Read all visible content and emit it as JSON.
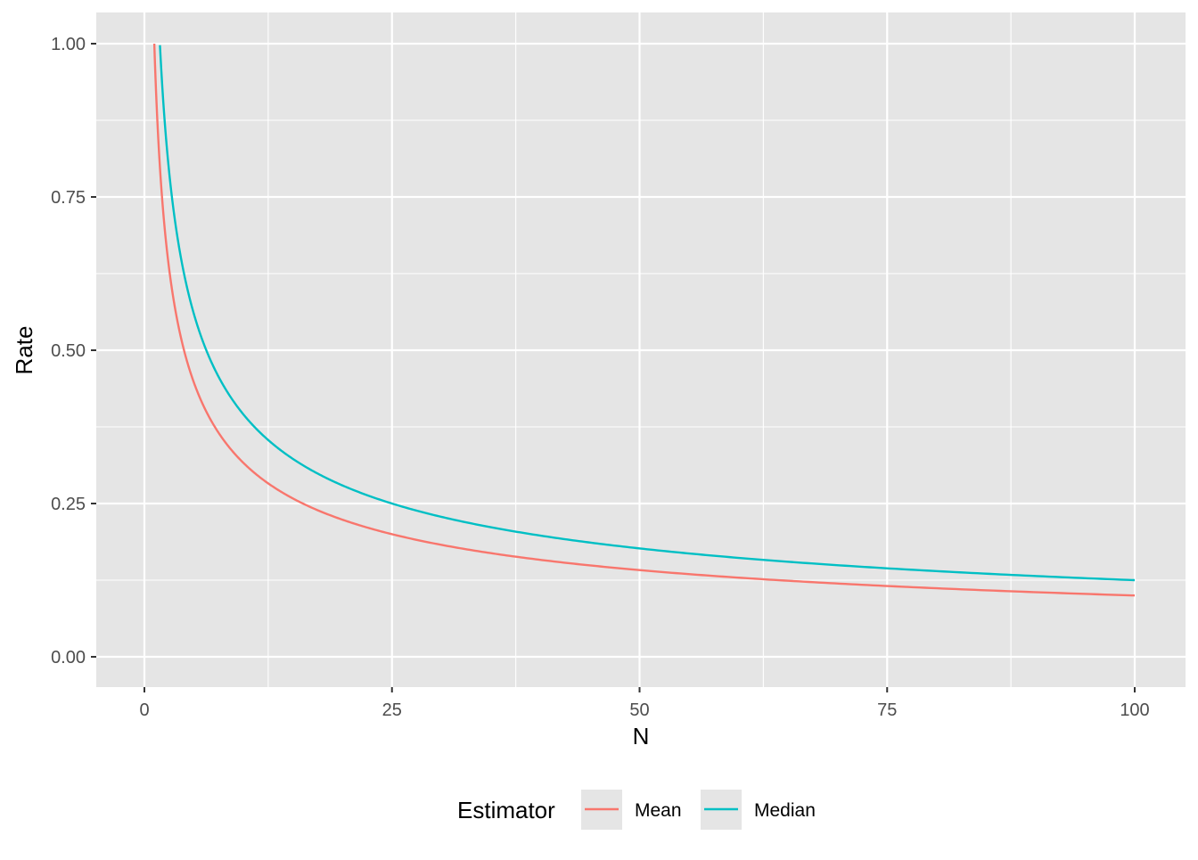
{
  "chart_data": {
    "type": "line",
    "title": "",
    "xlabel": "N",
    "ylabel": "Rate",
    "xlim": [
      -2,
      104
    ],
    "ylim": [
      -0.1,
      1.05
    ],
    "x_ticks": [
      0,
      25,
      50,
      75,
      100
    ],
    "x_tick_labels": [
      "0",
      "25",
      "50",
      "75",
      "100"
    ],
    "y_ticks": [
      0,
      0.25,
      0.5,
      0.75,
      1
    ],
    "y_tick_labels": [
      "0.00",
      "0.25",
      "0.50",
      "0.75",
      "1.00"
    ],
    "grid": true,
    "panel_background": "#E5E5E5",
    "grid_color": "#FFFFFF",
    "legend": {
      "title": "Estimator",
      "position": "bottom",
      "entries": [
        "Mean",
        "Median"
      ]
    },
    "series": [
      {
        "name": "Mean",
        "color": "#F8766D",
        "x": [
          1,
          2,
          3,
          4,
          5,
          6,
          8,
          10,
          12,
          15,
          20,
          25,
          30,
          40,
          50,
          60,
          70,
          80,
          90,
          100
        ],
        "values": [
          1.0,
          0.707,
          0.577,
          0.5,
          0.447,
          0.408,
          0.354,
          0.316,
          0.289,
          0.258,
          0.224,
          0.2,
          0.183,
          0.158,
          0.141,
          0.129,
          0.12,
          0.112,
          0.105,
          0.1
        ]
      },
      {
        "name": "Median",
        "color": "#00BFC4",
        "x": [
          1.57,
          2,
          3,
          4,
          5,
          6,
          8,
          10,
          12,
          15,
          20,
          25,
          30,
          40,
          50,
          60,
          70,
          80,
          90,
          100
        ],
        "values": [
          1.0,
          0.886,
          0.724,
          0.627,
          0.561,
          0.512,
          0.443,
          0.396,
          0.362,
          0.324,
          0.28,
          0.251,
          0.229,
          0.198,
          0.177,
          0.162,
          0.15,
          0.14,
          0.132,
          0.125
        ]
      }
    ]
  }
}
